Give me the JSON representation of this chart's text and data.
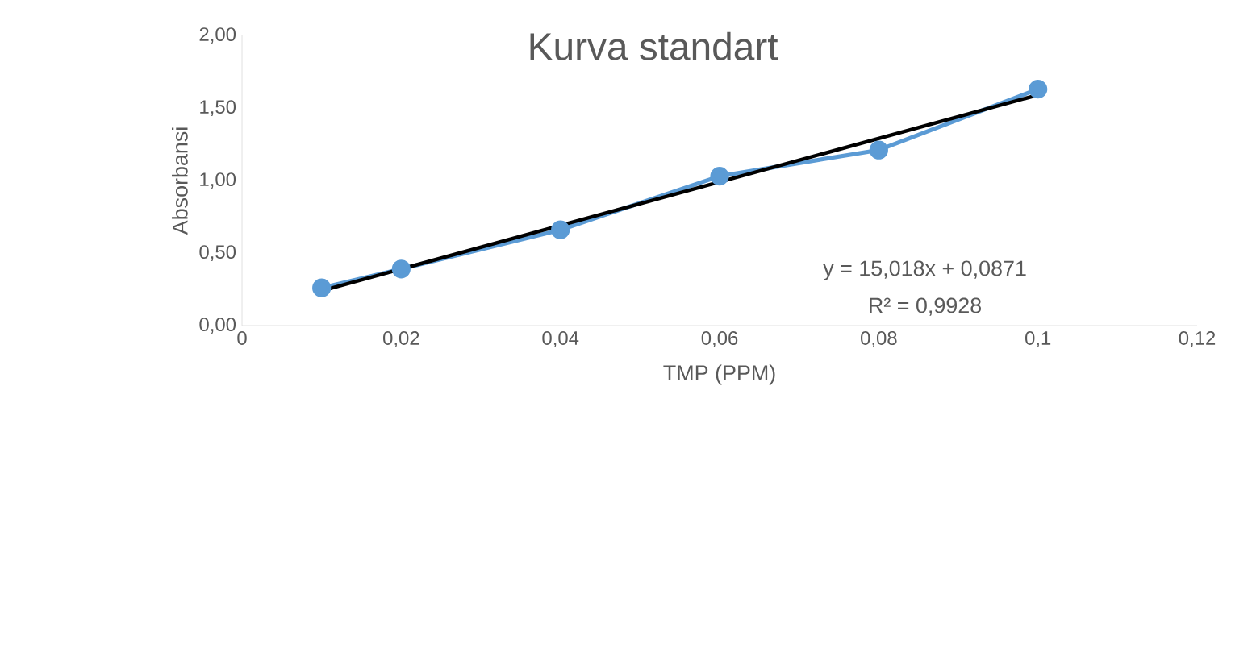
{
  "chart_data": {
    "type": "line",
    "title": "Kurva standart",
    "xlabel": "TMP (PPM)",
    "ylabel": "Absorbansi",
    "marker": "circle",
    "series": [
      {
        "x": [
          0.01,
          0.02,
          0.04,
          0.06,
          0.08,
          0.1
        ],
        "values": [
          0.26,
          0.39,
          0.66,
          1.03,
          1.21,
          1.63
        ],
        "color": "#5b9bd5"
      },
      {
        "x": [
          0.01,
          0.1
        ],
        "values": [
          0.24,
          1.59
        ],
        "color": "#000000",
        "marker": "none"
      }
    ],
    "xlim": [
      0,
      0.12
    ],
    "xticks": [
      {
        "value": 0,
        "label": "0"
      },
      {
        "value": 0.02,
        "label": "0,02"
      },
      {
        "value": 0.04,
        "label": "0,04"
      },
      {
        "value": 0.06,
        "label": "0,06"
      },
      {
        "value": 0.08,
        "label": "0,08"
      },
      {
        "value": 0.1,
        "label": "0,1"
      },
      {
        "value": 0.12,
        "label": "0,12"
      }
    ],
    "ylim": [
      0,
      2
    ],
    "yticks": [
      {
        "value": 0,
        "label": "0,00"
      },
      {
        "value": 0.5,
        "label": "0,50"
      },
      {
        "value": 1,
        "label": "1,00"
      },
      {
        "value": 1.5,
        "label": "1,50"
      },
      {
        "value": 2,
        "label": "2,00"
      }
    ],
    "annotations": [
      "y = 15,018x + 0,0871",
      "R² = 0,9928"
    ]
  }
}
